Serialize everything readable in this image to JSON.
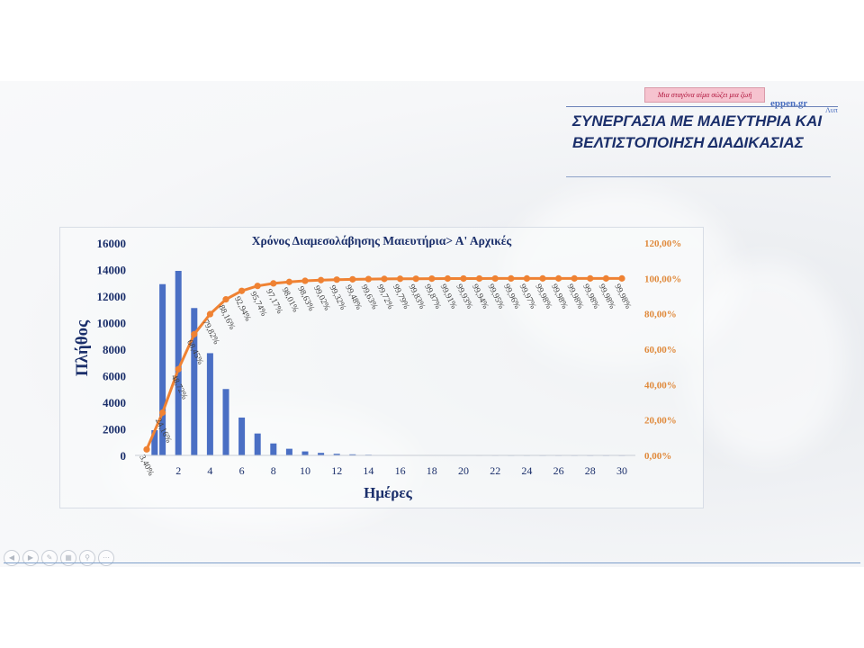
{
  "slide": {
    "badge": "Μια σταγόνα αίμα σώζει μια ζωή",
    "site": "eppen.gr",
    "site_sub": "Λυπ",
    "title_lines": [
      "ΣΥΝΕΡΓΑΣΙΑ ΜΕ ΜΑΙΕΥΤΗΡΙΑ ΚΑΙ",
      "ΒΕΛΤΙΣΤΟΠΟΙΗΣΗ ΔΙΑΔΙΚΑΣΙΑΣ"
    ]
  },
  "controls": [
    {
      "icon": "back-arrow-icon",
      "glyph": "◀"
    },
    {
      "icon": "forward-arrow-icon",
      "glyph": "▶"
    },
    {
      "icon": "pen-icon",
      "glyph": "✎"
    },
    {
      "icon": "slides-icon",
      "glyph": "▦"
    },
    {
      "icon": "zoom-icon",
      "glyph": "⚲"
    },
    {
      "icon": "more-icon",
      "glyph": "⋯"
    }
  ],
  "chart_data": {
    "type": "bar",
    "title": "Χρόνος Διαμεσολάβησης Μαιευτήρια> Α' Αρχικές",
    "xlabel": "Ημέρες",
    "ylabel": "Πλήθος",
    "x": [
      1,
      2,
      3,
      4,
      5,
      6,
      7,
      8,
      9,
      10,
      11,
      12,
      13,
      14,
      15,
      16,
      17,
      18,
      19,
      20,
      21,
      22,
      23,
      24,
      25,
      26,
      27,
      28,
      29,
      30
    ],
    "xticks": [
      2,
      4,
      6,
      8,
      10,
      12,
      14,
      16,
      18,
      20,
      22,
      24,
      26,
      28,
      30
    ],
    "bars": [
      [
        0.5,
        1900
      ],
      [
        1,
        12900
      ],
      [
        2,
        13900
      ],
      [
        3,
        11100
      ],
      [
        4,
        7700
      ],
      [
        5,
        5000
      ],
      [
        6,
        2850
      ],
      [
        7,
        1650
      ],
      [
        8,
        900
      ],
      [
        9,
        500
      ],
      [
        10,
        300
      ],
      [
        11,
        190
      ],
      [
        12,
        120
      ],
      [
        13,
        80
      ],
      [
        14,
        50
      ],
      [
        15,
        30
      ],
      [
        16,
        20
      ],
      [
        17,
        15
      ],
      [
        18,
        10
      ],
      [
        19,
        8
      ],
      [
        20,
        6
      ],
      [
        21,
        5
      ],
      [
        22,
        4
      ],
      [
        23,
        3
      ],
      [
        24,
        3
      ],
      [
        25,
        2
      ],
      [
        26,
        2
      ],
      [
        27,
        2
      ],
      [
        28,
        1
      ],
      [
        29,
        1
      ],
      [
        30,
        1
      ]
    ],
    "ylim": [
      0,
      16000
    ],
    "yticks": [
      0,
      2000,
      4000,
      6000,
      8000,
      10000,
      12000,
      14000,
      16000
    ],
    "y2lim": [
      0,
      1.2
    ],
    "y2ticks": [
      "0,00%",
      "20,00%",
      "40,00%",
      "60,00%",
      "80,00%",
      "100,00%",
      "120,00%"
    ],
    "cumulative": {
      "x": [
        0,
        1,
        2,
        3,
        4,
        5,
        6,
        7,
        8,
        9,
        10,
        11,
        12,
        13,
        14,
        15,
        16,
        17,
        18,
        19,
        20,
        21,
        22,
        23,
        24,
        25,
        26,
        27,
        28,
        29,
        30
      ],
      "labels": [
        "3,40%",
        "24,16%",
        "48,72%",
        "68,45%",
        "79,82%",
        "88,16%",
        "92,94%",
        "95,74%",
        "97,17%",
        "98,01%",
        "98,63%",
        "99,02%",
        "99,32%",
        "99,48%",
        "99,63%",
        "99,72%",
        "99,79%",
        "99,83%",
        "99,87%",
        "99,91%",
        "99,93%",
        "99,94%",
        "99,95%",
        "99,96%",
        "99,97%",
        "99,98%",
        "99,98%",
        "99,98%",
        "99,98%",
        "99,98%",
        "99,98%"
      ],
      "values": [
        0.034,
        0.2416,
        0.4872,
        0.6845,
        0.7982,
        0.8816,
        0.9294,
        0.9574,
        0.9717,
        0.9801,
        0.9863,
        0.9902,
        0.9932,
        0.9948,
        0.9963,
        0.9972,
        0.9979,
        0.9983,
        0.9987,
        0.9991,
        0.9993,
        0.9994,
        0.9995,
        0.9996,
        0.9997,
        0.9998,
        0.9998,
        0.9998,
        0.9998,
        0.9998,
        0.9998
      ]
    },
    "colors": {
      "bars": "#4a6fc4",
      "line": "#ef8233",
      "left_axis": "#1b2f6b",
      "right_axis": "#e08a3c",
      "labels": "#404040"
    },
    "grid": false,
    "legend": "none"
  }
}
